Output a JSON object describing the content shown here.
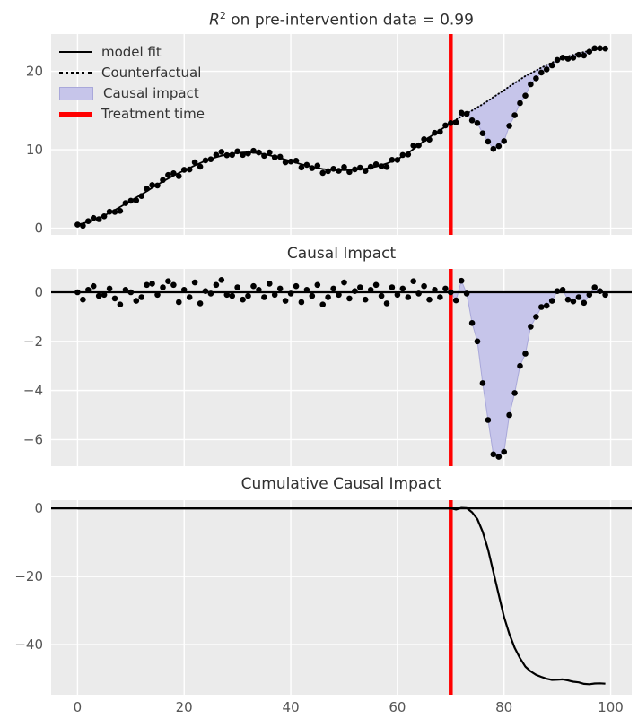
{
  "figure": {
    "bg": "#ffffff",
    "axes_bg": "#ebebeb",
    "grid_color": "#ffffff",
    "tick_color": "#555555",
    "title_color": "#303030"
  },
  "colors": {
    "data": "#000000",
    "model_fit": "#000000",
    "counterfactual": "#000000",
    "impact_fill": "#c6c5ea",
    "impact_fill_edge": "#a9a8da",
    "treatment": "#ff0000",
    "zero_line": "#000000"
  },
  "titles": {
    "top_r": "R",
    "top_sup": "2",
    "top_rest": " on pre-intervention data = 0.99",
    "middle": "Causal Impact",
    "bottom": "Cumulative Causal Impact"
  },
  "legend": {
    "items": [
      {
        "label": "model fit",
        "type": "line"
      },
      {
        "label": "Counterfactual",
        "type": "dotted"
      },
      {
        "label": "Causal impact",
        "type": "patch"
      },
      {
        "label": "Treatment time",
        "type": "redline"
      }
    ]
  },
  "chart_data": [
    {
      "type": "scatter",
      "title": "R^2 on pre-intervention data = 0.99",
      "r_squared": 0.99,
      "xlim": [
        -4.95,
        103.95
      ],
      "ylim": [
        -0.85,
        24.75
      ],
      "xticks": [
        0,
        20,
        40,
        60,
        80,
        100
      ],
      "yticks": [
        0,
        10,
        20
      ],
      "ytick_labels": [
        "0",
        "10",
        "20"
      ],
      "treatment_time": 70,
      "x_is_index_from": 0,
      "observed": [
        0.45,
        0.32,
        0.9,
        1.3,
        1.15,
        1.52,
        2.1,
        2.07,
        2.2,
        3.2,
        3.5,
        3.55,
        4.1,
        5.02,
        5.5,
        5.45,
        6.15,
        6.78,
        7.0,
        6.63,
        7.45,
        7.48,
        8.4,
        7.85,
        8.65,
        8.78,
        9.35,
        9.73,
        9.3,
        9.35,
        9.8,
        9.35,
        9.53,
        9.87,
        9.65,
        9.23,
        9.65,
        9.03,
        9.1,
        8.4,
        8.5,
        8.6,
        7.75,
        8.07,
        7.65,
        7.97,
        7.05,
        7.28,
        7.57,
        7.31,
        7.8,
        7.17,
        7.5,
        7.72,
        7.3,
        7.82,
        8.15,
        7.89,
        7.8,
        8.72,
        8.7,
        9.33,
        9.4,
        10.53,
        10.55,
        11.35,
        11.3,
        12.15,
        12.3,
        13.1,
        13.4,
        13.49,
        14.72,
        14.57,
        13.75,
        13.4,
        12.1,
        11.05,
        10.1,
        10.45,
        11.1,
        13.05,
        14.4,
        15.95,
        16.9,
        18.35,
        19.1,
        19.85,
        20.25,
        20.75,
        21.45,
        21.75,
        21.6,
        21.73,
        22.1,
        22.02,
        22.5,
        22.95,
        22.95,
        22.9
      ],
      "model_fit_x_start": 0,
      "model_fit": [
        0.45,
        0.62,
        0.8,
        1.05,
        1.3,
        1.62,
        1.95,
        2.32,
        2.7,
        3.1,
        3.5,
        3.9,
        4.3,
        4.72,
        5.15,
        5.55,
        5.95,
        6.33,
        6.7,
        7.03,
        7.35,
        7.68,
        8.0,
        8.3,
        8.6,
        8.83,
        9.05,
        9.23,
        9.4,
        9.5,
        9.6,
        9.65,
        9.68,
        9.62,
        9.55,
        9.43,
        9.3,
        9.13,
        8.95,
        8.75,
        8.55,
        8.35,
        8.15,
        7.97,
        7.8,
        7.67,
        7.55,
        7.48,
        7.42,
        7.41,
        7.4,
        7.42,
        7.45,
        7.52,
        7.6,
        7.72,
        7.85,
        8.04,
        8.25,
        8.52,
        8.8,
        9.18,
        9.6,
        10.08,
        10.6,
        11.1,
        11.6,
        12.05,
        12.5,
        12.95,
        13.4
      ],
      "counterfactual_x_start": 70,
      "counterfactual": [
        13.4,
        13.82,
        14.25,
        14.62,
        15.0,
        15.4,
        15.8,
        16.25,
        16.7,
        17.15,
        17.6,
        18.05,
        18.5,
        18.95,
        19.4,
        19.75,
        20.1,
        20.45,
        20.8,
        21.1,
        21.4,
        21.65,
        21.9,
        22.1,
        22.3,
        22.45,
        22.6,
        22.75,
        22.9,
        23.0
      ]
    },
    {
      "type": "scatter",
      "title": "Causal Impact",
      "xlim": [
        -4.95,
        103.95
      ],
      "ylim": [
        -7.08,
        0.95
      ],
      "xticks": [
        0,
        20,
        40,
        60,
        80,
        100
      ],
      "yticks": [
        0,
        -2,
        -4,
        -6
      ],
      "ytick_labels": [
        "0",
        "−2",
        "−4",
        "−6"
      ],
      "treatment_time": 70,
      "zero_line": true,
      "fill_x_start": 70,
      "x_is_index_from": 0,
      "values": [
        0.0,
        -0.3,
        0.1,
        0.25,
        -0.15,
        -0.1,
        0.15,
        -0.25,
        -0.5,
        0.1,
        0.0,
        -0.35,
        -0.2,
        0.3,
        0.35,
        -0.1,
        0.2,
        0.45,
        0.3,
        -0.4,
        0.1,
        -0.2,
        0.4,
        -0.45,
        0.05,
        -0.05,
        0.3,
        0.5,
        -0.1,
        -0.15,
        0.2,
        -0.3,
        -0.15,
        0.25,
        0.1,
        -0.2,
        0.35,
        -0.1,
        0.15,
        -0.35,
        -0.05,
        0.25,
        -0.4,
        0.1,
        -0.15,
        0.3,
        -0.5,
        -0.2,
        0.15,
        -0.1,
        0.4,
        -0.25,
        0.05,
        0.2,
        -0.3,
        0.1,
        0.3,
        -0.15,
        -0.45,
        0.2,
        -0.1,
        0.15,
        -0.2,
        0.45,
        -0.05,
        0.25,
        -0.3,
        0.1,
        -0.2,
        0.15,
        0.0,
        -0.33,
        0.47,
        -0.05,
        -1.25,
        -2.0,
        -3.7,
        -5.2,
        -6.6,
        -6.7,
        -6.5,
        -5.0,
        -4.1,
        -3.0,
        -2.5,
        -1.4,
        -1.0,
        -0.6,
        -0.55,
        -0.35,
        0.05,
        0.1,
        -0.3,
        -0.37,
        -0.2,
        -0.43,
        -0.1,
        0.2,
        0.05,
        -0.1
      ]
    },
    {
      "type": "line",
      "title": "Cumulative Causal Impact",
      "xlim": [
        -4.95,
        103.95
      ],
      "ylim": [
        -54.7,
        2.4
      ],
      "xticks": [
        0,
        20,
        40,
        60,
        80,
        100
      ],
      "xtick_labels": [
        "0",
        "20",
        "40",
        "60",
        "80",
        "100"
      ],
      "yticks": [
        0,
        -20,
        -40
      ],
      "ytick_labels": [
        "0",
        "−20",
        "−40"
      ],
      "treatment_time": 70,
      "zero_line": true,
      "pre_period_value": 0,
      "post_x_start": 71,
      "post_values": [
        -0.33,
        0.14,
        0.09,
        -1.16,
        -3.16,
        -6.86,
        -12.06,
        -18.66,
        -25.36,
        -31.86,
        -36.86,
        -40.96,
        -43.96,
        -46.46,
        -47.86,
        -48.86,
        -49.46,
        -50.01,
        -50.36,
        -50.31,
        -50.21,
        -50.51,
        -50.88,
        -51.08,
        -51.51,
        -51.61,
        -51.41,
        -51.36,
        -51.46
      ]
    }
  ]
}
